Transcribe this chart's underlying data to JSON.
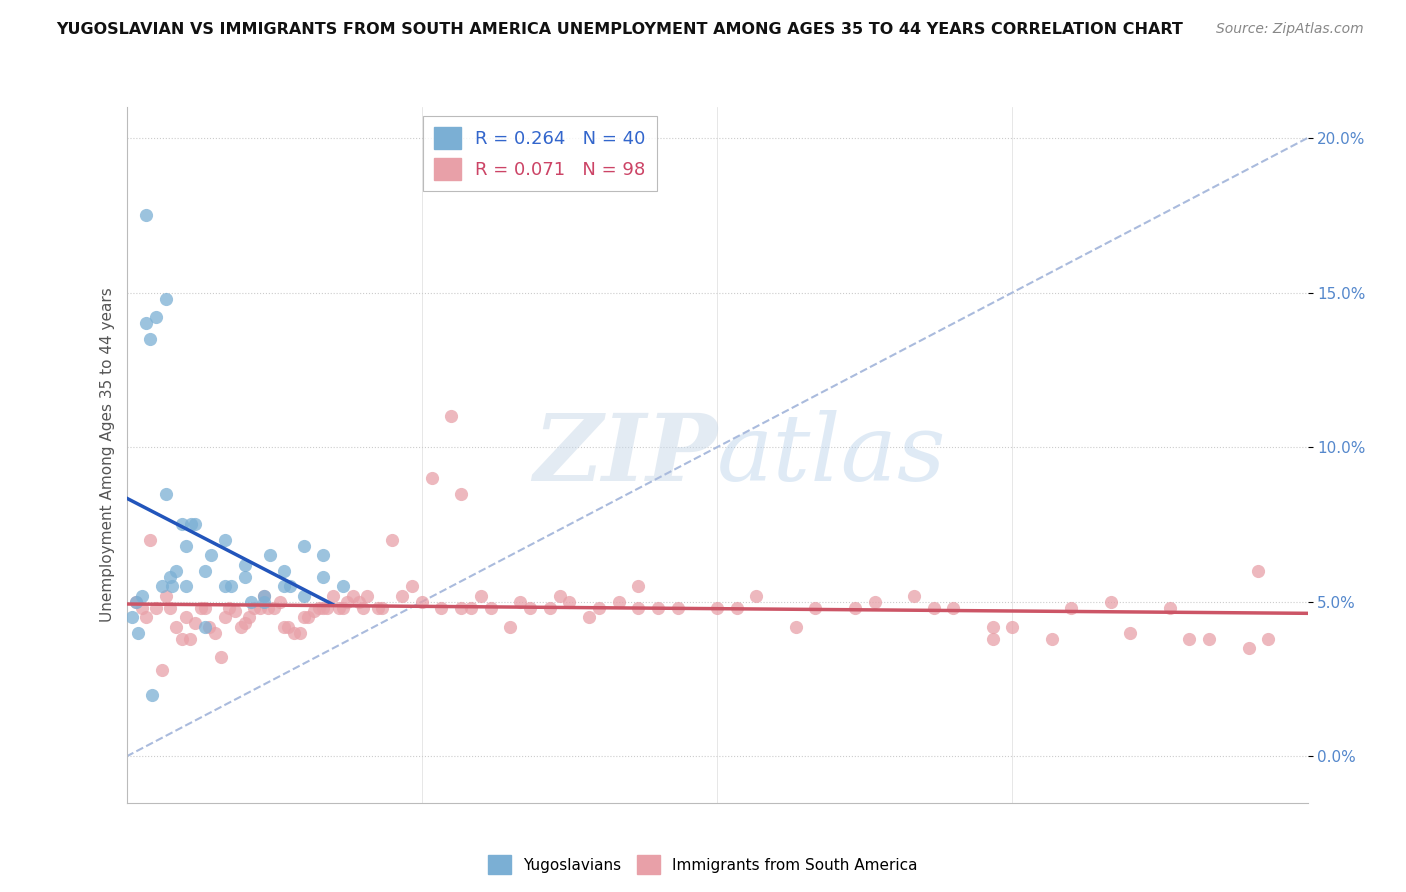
{
  "title": "YUGOSLAVIAN VS IMMIGRANTS FROM SOUTH AMERICA UNEMPLOYMENT AMONG AGES 35 TO 44 YEARS CORRELATION CHART",
  "source": "Source: ZipAtlas.com",
  "ylabel": "Unemployment Among Ages 35 to 44 years",
  "series1_color": "#7bafd4",
  "series2_color": "#e8a0a8",
  "series1_reg_color": "#2255bb",
  "series2_reg_color": "#cc5566",
  "series1_name": "Yugoslavians",
  "series2_name": "Immigrants from South America",
  "diag_color": "#aabbdd",
  "ytick_color": "#5588cc",
  "watermark_color": "#ccddeeff",
  "yug_x": [
    0.5,
    0.8,
    1.0,
    1.2,
    1.5,
    1.8,
    2.0,
    2.2,
    2.5,
    2.8,
    3.0,
    3.5,
    4.0,
    5.0,
    6.0,
    7.0,
    8.0,
    9.0,
    10.0,
    11.0,
    0.3,
    0.6,
    1.3,
    2.3,
    3.3,
    4.3,
    5.3,
    6.3,
    7.3,
    8.3,
    1.0,
    2.0,
    3.0,
    4.0,
    5.0,
    6.0,
    7.0,
    8.0,
    9.0,
    10.0
  ],
  "yug_y": [
    5.0,
    5.2,
    17.5,
    13.5,
    14.2,
    5.5,
    8.5,
    5.8,
    6.0,
    7.5,
    6.8,
    7.5,
    4.2,
    5.5,
    6.2,
    5.0,
    5.5,
    6.8,
    6.5,
    5.5,
    4.5,
    4.0,
    2.0,
    5.5,
    7.5,
    6.5,
    5.5,
    5.0,
    6.5,
    5.5,
    14.0,
    14.8,
    5.5,
    6.0,
    7.0,
    5.8,
    5.2,
    6.0,
    5.2,
    5.8
  ],
  "sa_x": [
    0.5,
    1.0,
    1.5,
    2.0,
    2.5,
    3.0,
    3.5,
    4.0,
    4.5,
    5.0,
    5.5,
    6.0,
    6.5,
    7.0,
    7.5,
    8.0,
    8.5,
    9.0,
    9.5,
    10.0,
    10.5,
    11.0,
    11.5,
    12.0,
    13.0,
    14.0,
    15.0,
    16.0,
    17.0,
    18.0,
    20.0,
    22.0,
    24.0,
    25.0,
    26.0,
    28.0,
    30.0,
    32.0,
    35.0,
    38.0,
    40.0,
    42.0,
    45.0,
    48.0,
    50.0,
    53.0,
    55.0,
    58.0,
    1.2,
    2.2,
    3.2,
    4.2,
    5.2,
    6.2,
    7.2,
    8.2,
    9.2,
    10.2,
    11.2,
    12.2,
    13.5,
    15.5,
    17.5,
    19.5,
    21.5,
    23.5,
    27.0,
    31.0,
    34.0,
    37.0,
    41.0,
    44.0,
    47.0,
    51.0,
    54.0,
    57.0,
    0.8,
    1.8,
    2.8,
    3.8,
    4.8,
    5.8,
    6.8,
    7.8,
    8.8,
    9.8,
    10.8,
    11.8,
    12.8,
    14.5,
    16.5,
    18.5,
    20.5,
    22.5,
    26.0,
    57.5,
    44.0,
    17.0
  ],
  "sa_y": [
    5.0,
    4.5,
    4.8,
    5.2,
    4.2,
    4.5,
    4.3,
    4.8,
    4.0,
    4.5,
    4.7,
    4.3,
    4.8,
    5.2,
    4.8,
    4.2,
    4.0,
    4.5,
    4.7,
    4.8,
    5.2,
    4.8,
    5.2,
    4.8,
    4.8,
    5.2,
    5.0,
    4.8,
    4.8,
    5.2,
    5.0,
    5.2,
    4.8,
    5.0,
    5.5,
    4.8,
    4.8,
    5.2,
    4.8,
    5.0,
    5.2,
    4.8,
    4.2,
    4.8,
    5.0,
    4.8,
    3.8,
    3.8,
    7.0,
    4.8,
    3.8,
    4.2,
    4.8,
    4.5,
    4.8,
    4.2,
    4.5,
    4.8,
    5.0,
    5.2,
    7.0,
    9.0,
    4.8,
    4.2,
    4.8,
    4.5,
    4.8,
    4.8,
    4.2,
    4.8,
    4.8,
    4.2,
    3.8,
    4.0,
    3.8,
    3.5,
    4.8,
    2.8,
    3.8,
    4.8,
    3.2,
    4.2,
    4.8,
    5.0,
    4.0,
    4.8,
    4.8,
    5.0,
    4.8,
    5.5,
    11.0,
    4.8,
    4.8,
    5.0,
    4.8,
    6.0,
    3.8,
    8.5
  ]
}
